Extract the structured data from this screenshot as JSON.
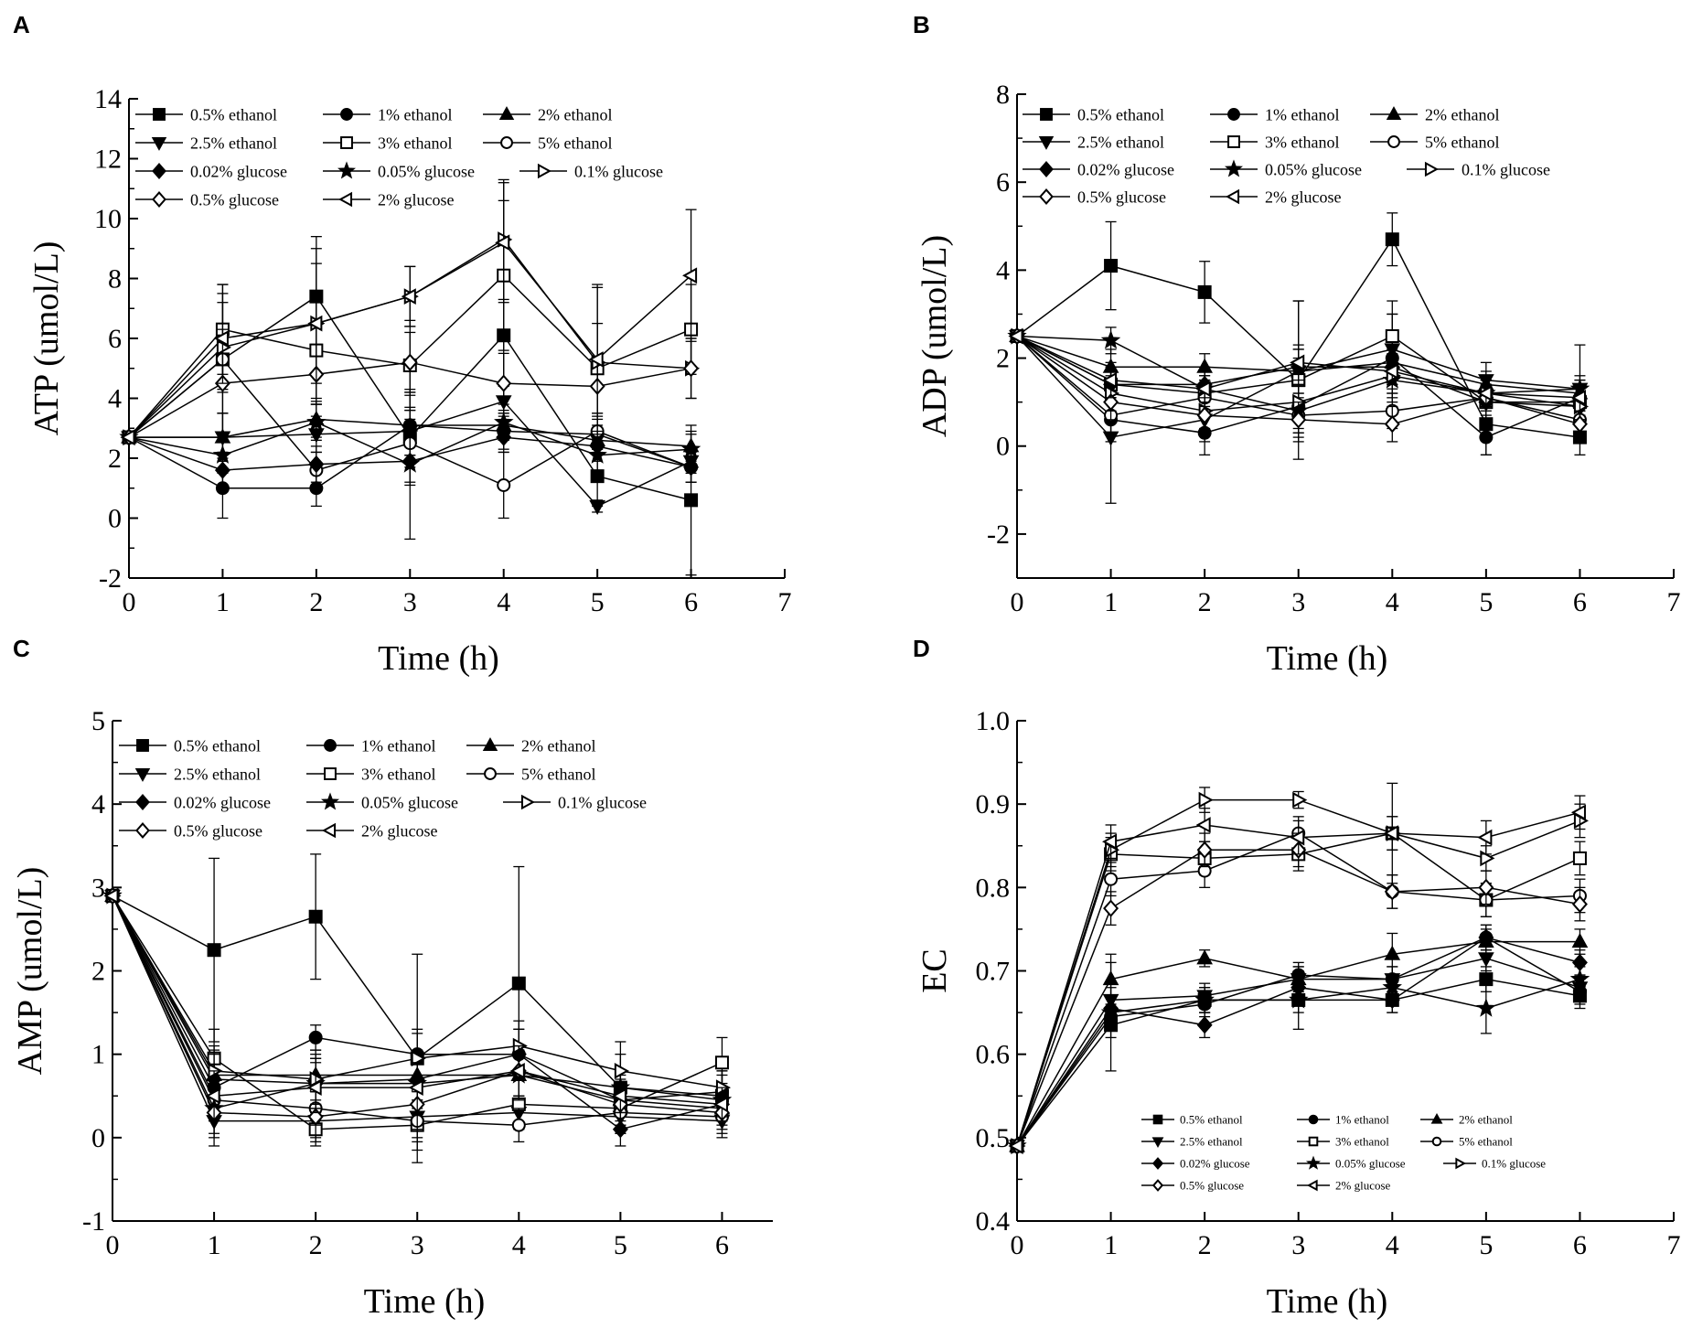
{
  "figure": {
    "panel_labels": [
      "A",
      "B",
      "C",
      "D"
    ]
  },
  "series_names": [
    "0.5% ethanol",
    "1% ethanol",
    "2% ethanol",
    "2.5% ethanol",
    "3% ethanol",
    "5% ethanol",
    "0.02% glucose",
    "0.05% glucose",
    "0.1% glucose",
    "0.5% glucose",
    "2% glucose"
  ],
  "markers": [
    "square-filled",
    "circle-filled",
    "triangle-up-filled",
    "triangle-down-filled",
    "square-open",
    "circle-open",
    "diamond-filled",
    "star-filled",
    "triangle-right-open",
    "diamond-open",
    "triangle-left-open"
  ],
  "colors": {
    "line": "#000000",
    "background": "#ffffff"
  },
  "chart_data": [
    {
      "panel": "A",
      "type": "line",
      "title": "",
      "xlabel": "Time (h)",
      "ylabel": "ATP (umol/L)",
      "xlim": [
        0,
        7
      ],
      "ylim": [
        -2,
        14
      ],
      "xticks": [
        "0",
        "1",
        "2",
        "3",
        "4",
        "5",
        "6",
        "7"
      ],
      "yticks": [
        "-2",
        "0",
        "2",
        "4",
        "6",
        "8",
        "10",
        "12",
        "14"
      ],
      "x": [
        0,
        1,
        2,
        3,
        4,
        5,
        6
      ],
      "legend_position": "top-left",
      "series": [
        {
          "name": "0.5% ethanol",
          "values": [
            2.7,
            5.3,
            7.4,
            2.7,
            6.1,
            1.4,
            0.6
          ],
          "errors": [
            0,
            2.5,
            2.0,
            1.5,
            3.0,
            1.0,
            2.5
          ]
        },
        {
          "name": "1% ethanol",
          "values": [
            2.7,
            1.0,
            1.0,
            3.1,
            2.9,
            2.8,
            1.7
          ],
          "errors": [
            0,
            1.0,
            0.6,
            1.0,
            0.6,
            0.5,
            0.5
          ]
        },
        {
          "name": "2% ethanol",
          "values": [
            2.7,
            2.7,
            3.3,
            3.1,
            3.1,
            2.6,
            2.4
          ],
          "errors": [
            0,
            0.8,
            0.6,
            0.5,
            0.5,
            0.5,
            0.5
          ]
        },
        {
          "name": "2.5% ethanol",
          "values": [
            2.7,
            2.7,
            2.8,
            2.9,
            3.9,
            0.4,
            1.9
          ],
          "errors": [
            0,
            0.8,
            0.6,
            0.8,
            0.5,
            0.2,
            0.4
          ]
        },
        {
          "name": "3% ethanol",
          "values": [
            2.7,
            6.3,
            5.6,
            5.1,
            8.1,
            5.0,
            6.3
          ],
          "errors": [
            0,
            1.5,
            1.8,
            1.5,
            2.5,
            1.5,
            1.5
          ]
        },
        {
          "name": "5% ethanol",
          "values": [
            2.7,
            5.3,
            1.6,
            2.5,
            1.1,
            2.9,
            1.7
          ],
          "errors": [
            0,
            1.0,
            0.6,
            0.8,
            1.1,
            0.6,
            0.5
          ]
        },
        {
          "name": "0.02% glucose",
          "values": [
            2.7,
            1.6,
            1.8,
            1.9,
            2.7,
            2.4,
            1.7
          ],
          "errors": [
            0,
            0.6,
            0.6,
            0.8,
            0.5,
            0.5,
            0.5
          ]
        },
        {
          "name": "0.05% glucose",
          "values": [
            2.7,
            2.1,
            3.2,
            1.8,
            3.2,
            2.1,
            2.3
          ],
          "errors": [
            0,
            0.6,
            0.6,
            2.5,
            0.6,
            0.5,
            0.5
          ]
        },
        {
          "name": "0.1% glucose",
          "values": [
            2.7,
            5.7,
            6.5,
            7.4,
            9.3,
            5.2,
            5.0
          ],
          "errors": [
            0,
            1.5,
            2.5,
            1.0,
            2.0,
            2.5,
            1.0
          ]
        },
        {
          "name": "0.5% glucose",
          "values": [
            2.7,
            4.5,
            4.8,
            5.2,
            4.5,
            4.4,
            5.0
          ],
          "errors": [
            0,
            1.0,
            1.0,
            1.0,
            1.0,
            1.0,
            1.0
          ]
        },
        {
          "name": "2% glucose",
          "values": [
            2.7,
            6.0,
            6.5,
            7.4,
            9.2,
            5.3,
            8.1
          ],
          "errors": [
            0,
            1.5,
            2.0,
            1.0,
            2.0,
            2.5,
            2.2
          ]
        }
      ]
    },
    {
      "panel": "B",
      "type": "line",
      "title": "",
      "xlabel": "Time (h)",
      "ylabel": "ADP (umol/L)",
      "xlim": [
        0,
        7
      ],
      "ylim": [
        -3,
        8
      ],
      "xticks": [
        "0",
        "1",
        "2",
        "3",
        "4",
        "5",
        "6",
        "7"
      ],
      "yticks": [
        "-2",
        "0",
        "2",
        "4",
        "6",
        "8"
      ],
      "x": [
        0,
        1,
        2,
        3,
        4,
        5,
        6
      ],
      "legend_position": "top-left",
      "series": [
        {
          "name": "0.5% ethanol",
          "values": [
            2.5,
            4.1,
            3.5,
            1.5,
            4.7,
            0.5,
            0.2
          ],
          "errors": [
            0,
            1.0,
            0.7,
            1.8,
            0.6,
            0.7,
            0.4
          ]
        },
        {
          "name": "1% ethanol",
          "values": [
            2.5,
            0.6,
            0.3,
            0.9,
            2.0,
            0.2,
            1.1
          ],
          "errors": [
            0,
            0.5,
            0.5,
            0.6,
            1.0,
            0.4,
            0.4
          ]
        },
        {
          "name": "2% ethanol",
          "values": [
            2.5,
            1.8,
            1.8,
            1.7,
            1.9,
            1.4,
            1.2
          ],
          "errors": [
            0,
            0.4,
            0.3,
            0.5,
            0.5,
            0.3,
            0.3
          ]
        },
        {
          "name": "2.5% ethanol",
          "values": [
            2.5,
            0.2,
            0.6,
            1.7,
            2.2,
            1.5,
            1.3
          ],
          "errors": [
            0,
            1.5,
            0.5,
            1.6,
            0.8,
            0.4,
            1.0
          ]
        },
        {
          "name": "3% ethanol",
          "values": [
            2.5,
            1.4,
            1.2,
            1.5,
            2.5,
            1.0,
            1.0
          ],
          "errors": [
            0,
            0.4,
            0.4,
            0.5,
            0.8,
            0.4,
            0.4
          ]
        },
        {
          "name": "5% ethanol",
          "values": [
            2.5,
            0.7,
            1.1,
            0.7,
            0.8,
            1.1,
            0.6
          ],
          "errors": [
            0,
            0.4,
            0.4,
            0.4,
            0.4,
            0.4,
            0.3
          ]
        },
        {
          "name": "0.02% glucose",
          "values": [
            2.5,
            1.4,
            1.4,
            1.8,
            1.8,
            1.0,
            0.9
          ],
          "errors": [
            0,
            0.4,
            0.4,
            0.4,
            0.4,
            0.4,
            0.3
          ]
        },
        {
          "name": "0.05% glucose",
          "values": [
            2.5,
            2.4,
            1.3,
            0.8,
            1.5,
            1.2,
            1.3
          ],
          "errors": [
            0,
            0.3,
            0.3,
            0.4,
            0.4,
            0.3,
            0.3
          ]
        },
        {
          "name": "0.1% glucose",
          "values": [
            2.5,
            1.2,
            0.8,
            1.0,
            1.6,
            1.2,
            0.9
          ],
          "errors": [
            0,
            0.4,
            0.4,
            0.4,
            0.4,
            0.3,
            0.3
          ]
        },
        {
          "name": "0.5% glucose",
          "values": [
            2.5,
            1.0,
            0.7,
            0.6,
            0.5,
            1.1,
            0.5
          ],
          "errors": [
            0,
            0.4,
            0.4,
            0.4,
            0.4,
            0.3,
            0.3
          ]
        },
        {
          "name": "2% glucose",
          "values": [
            2.5,
            1.5,
            1.3,
            1.9,
            1.7,
            1.2,
            1.1
          ],
          "errors": [
            0,
            0.4,
            0.4,
            0.4,
            0.4,
            0.3,
            0.3
          ]
        }
      ]
    },
    {
      "panel": "C",
      "type": "line",
      "title": "",
      "xlabel": "Time (h)",
      "ylabel": "AMP (umol/L)",
      "xlim": [
        0,
        6.5
      ],
      "ylim": [
        -1,
        5
      ],
      "xticks": [
        "0",
        "1",
        "2",
        "3",
        "4",
        "5",
        "6"
      ],
      "yticks": [
        "-1",
        "0",
        "1",
        "2",
        "3",
        "4",
        "5"
      ],
      "x": [
        0,
        1,
        2,
        3,
        4,
        5,
        6
      ],
      "legend_position": "top-left",
      "series": [
        {
          "name": "0.5% ethanol",
          "values": [
            2.9,
            2.25,
            2.65,
            0.95,
            1.85,
            0.6,
            0.5
          ],
          "errors": [
            0,
            1.1,
            0.75,
            1.25,
            1.4,
            0.55,
            0.3
          ]
        },
        {
          "name": "1% ethanol",
          "values": [
            2.9,
            0.6,
            1.2,
            1.0,
            1.0,
            0.45,
            0.55
          ],
          "errors": [
            0,
            0.4,
            0.15,
            0.3,
            0.3,
            0.3,
            0.2
          ]
        },
        {
          "name": "2% ethanol",
          "values": [
            2.9,
            0.75,
            0.75,
            0.75,
            0.75,
            0.45,
            0.35
          ],
          "errors": [
            0,
            0.3,
            0.3,
            0.3,
            0.3,
            0.2,
            0.2
          ]
        },
        {
          "name": "2.5% ethanol",
          "values": [
            2.9,
            0.2,
            0.2,
            0.25,
            0.3,
            0.25,
            0.2
          ],
          "errors": [
            0,
            0.3,
            0.2,
            0.3,
            0.2,
            0.2,
            0.2
          ]
        },
        {
          "name": "3% ethanol",
          "values": [
            2.9,
            0.95,
            0.1,
            0.15,
            0.4,
            0.35,
            0.9
          ],
          "errors": [
            0,
            0.35,
            0.2,
            0.3,
            0.3,
            0.2,
            0.3
          ]
        },
        {
          "name": "5% ethanol",
          "values": [
            2.9,
            0.45,
            0.35,
            0.2,
            0.15,
            0.3,
            0.25
          ],
          "errors": [
            0,
            0.2,
            0.2,
            0.2,
            0.2,
            0.2,
            0.2
          ]
        },
        {
          "name": "0.02% glucose",
          "values": [
            2.9,
            0.7,
            0.65,
            0.7,
            1.0,
            0.1,
            0.4
          ],
          "errors": [
            0,
            0.3,
            0.3,
            0.3,
            0.3,
            0.2,
            0.2
          ]
        },
        {
          "name": "0.05% glucose",
          "values": [
            2.9,
            0.35,
            0.65,
            0.65,
            0.75,
            0.6,
            0.45
          ],
          "errors": [
            0,
            0.3,
            0.3,
            0.3,
            0.3,
            0.2,
            0.2
          ]
        },
        {
          "name": "0.1% glucose",
          "values": [
            2.9,
            0.8,
            0.7,
            0.95,
            1.1,
            0.8,
            0.6
          ],
          "errors": [
            0,
            0.3,
            0.3,
            0.3,
            0.3,
            0.2,
            0.2
          ]
        },
        {
          "name": "0.5% glucose",
          "values": [
            2.9,
            0.3,
            0.25,
            0.4,
            0.8,
            0.4,
            0.3
          ],
          "errors": [
            0,
            0.3,
            0.3,
            0.3,
            0.3,
            0.2,
            0.2
          ]
        },
        {
          "name": "2% glucose",
          "values": [
            2.9,
            0.5,
            0.6,
            0.6,
            0.8,
            0.5,
            0.4
          ],
          "errors": [
            0,
            0.3,
            0.3,
            0.3,
            0.3,
            0.2,
            0.2
          ]
        }
      ]
    },
    {
      "panel": "D",
      "type": "line",
      "title": "",
      "xlabel": "Time (h)",
      "ylabel": "EC",
      "xlim": [
        0,
        7
      ],
      "ylim": [
        0.4,
        1.0
      ],
      "xticks": [
        "0",
        "1",
        "2",
        "3",
        "4",
        "5",
        "6",
        "7"
      ],
      "yticks": [
        "0.4",
        "0.5",
        "0.6",
        "0.7",
        "0.8",
        "0.9",
        "1.0"
      ],
      "x": [
        0,
        1,
        2,
        3,
        4,
        5,
        6
      ],
      "legend_position": "bottom-right",
      "series": [
        {
          "name": "0.5% ethanol",
          "values": [
            0.49,
            0.635,
            0.665,
            0.665,
            0.665,
            0.69,
            0.67
          ],
          "errors": [
            0,
            0.015,
            0.015,
            0.015,
            0.015,
            0.015,
            0.015
          ]
        },
        {
          "name": "1% ethanol",
          "values": [
            0.49,
            0.645,
            0.66,
            0.695,
            0.69,
            0.74,
            0.675
          ],
          "errors": [
            0,
            0.015,
            0.015,
            0.015,
            0.015,
            0.015,
            0.015
          ]
        },
        {
          "name": "2% ethanol",
          "values": [
            0.49,
            0.69,
            0.715,
            0.69,
            0.72,
            0.735,
            0.735
          ],
          "errors": [
            0,
            0.02,
            0.01,
            0.015,
            0.025,
            0.015,
            0.015
          ]
        },
        {
          "name": "2.5% ethanol",
          "values": [
            0.49,
            0.665,
            0.67,
            0.69,
            0.69,
            0.715,
            0.68
          ],
          "errors": [
            0,
            0.015,
            0.015,
            0.015,
            0.015,
            0.015,
            0.015
          ]
        },
        {
          "name": "3% ethanol",
          "values": [
            0.49,
            0.84,
            0.835,
            0.84,
            0.865,
            0.785,
            0.835
          ],
          "errors": [
            0,
            0.02,
            0.02,
            0.02,
            0.02,
            0.02,
            0.02
          ]
        },
        {
          "name": "5% ethanol",
          "values": [
            0.49,
            0.81,
            0.82,
            0.865,
            0.795,
            0.785,
            0.79
          ],
          "errors": [
            0,
            0.02,
            0.02,
            0.02,
            0.02,
            0.02,
            0.02
          ]
        },
        {
          "name": "0.02% glucose",
          "values": [
            0.49,
            0.655,
            0.635,
            0.68,
            0.665,
            0.74,
            0.71
          ],
          "errors": [
            0,
            0.015,
            0.015,
            0.015,
            0.015,
            0.015,
            0.015
          ]
        },
        {
          "name": "0.05% glucose",
          "values": [
            0.49,
            0.65,
            0.665,
            0.665,
            0.68,
            0.655,
            0.69
          ],
          "errors": [
            0,
            0.07,
            0.015,
            0.035,
            0.015,
            0.03,
            0.015
          ]
        },
        {
          "name": "0.1% glucose",
          "values": [
            0.49,
            0.845,
            0.905,
            0.905,
            0.865,
            0.835,
            0.88
          ],
          "errors": [
            0,
            0.02,
            0.015,
            0.01,
            0.06,
            0.015,
            0.02
          ]
        },
        {
          "name": "0.5% glucose",
          "values": [
            0.49,
            0.775,
            0.845,
            0.845,
            0.795,
            0.8,
            0.78
          ],
          "errors": [
            0,
            0.02,
            0.02,
            0.02,
            0.02,
            0.02,
            0.02
          ]
        },
        {
          "name": "2% glucose",
          "values": [
            0.49,
            0.855,
            0.875,
            0.86,
            0.865,
            0.86,
            0.89
          ],
          "errors": [
            0,
            0.02,
            0.02,
            0.02,
            0.02,
            0.02,
            0.02
          ]
        }
      ]
    }
  ]
}
